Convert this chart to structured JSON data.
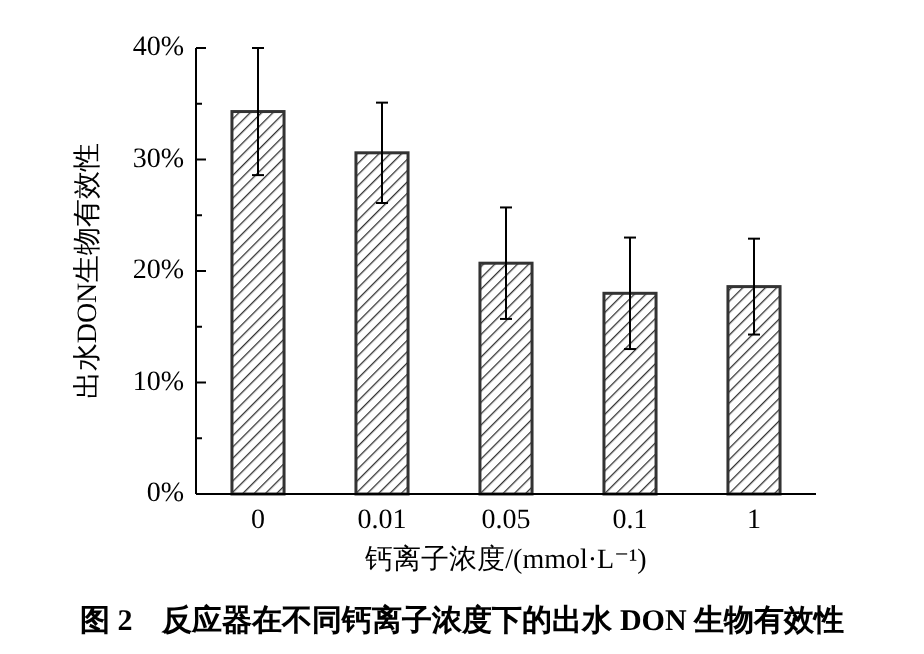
{
  "chart_data": {
    "type": "bar",
    "title": "图 2　反应器在不同钙离子浓度下的出水 DON 生物有效性",
    "xlabel": "钙离子浓度/(mmol·L⁻¹)",
    "ylabel": "出水DON生物有效性",
    "categories": [
      "0",
      "0.01",
      "0.05",
      "0.1",
      "1"
    ],
    "values": [
      34.3,
      30.6,
      20.7,
      18.0,
      18.6
    ],
    "errors": [
      5.7,
      4.5,
      5.0,
      5.0,
      4.3
    ],
    "color": "#333333",
    "ylim": [
      0,
      40
    ],
    "yticks": [
      {
        "value": 0,
        "label": "0%"
      },
      {
        "value": 5,
        "label": null
      },
      {
        "value": 10,
        "label": "10%"
      },
      {
        "value": 15,
        "label": null
      },
      {
        "value": 20,
        "label": "20%"
      },
      {
        "value": 25,
        "label": null
      },
      {
        "value": 30,
        "label": "30%"
      },
      {
        "value": 35,
        "label": null
      },
      {
        "value": 40,
        "label": "40%"
      }
    ],
    "grid": false
  }
}
